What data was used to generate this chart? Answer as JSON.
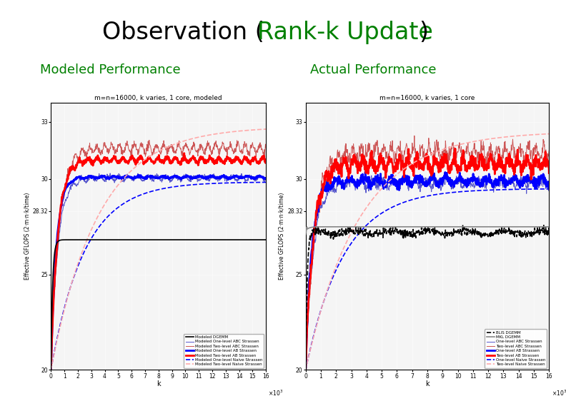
{
  "title_black1": "Observation (",
  "title_green": "Rank-k Update",
  "title_black2": ")",
  "subtitle_left": "Modeled Performance",
  "subtitle_right": "Actual Performance",
  "subtitle_color": "#008000",
  "title_fontsize": 24,
  "subtitle_fontsize": 13,
  "plot_title_left": "m=n=16000, k varies, 1 core, modeled",
  "plot_title_right": "m=n=16000, k varies, 1 core",
  "ylabel": "Effective GFLOPS (2·m·n·k/time)",
  "xlabel": "k",
  "ylim": [
    20,
    34
  ],
  "xlim": [
    0,
    16000
  ],
  "yticks": [
    20,
    25,
    28.32,
    30,
    33
  ],
  "xtick_labels": [
    "0",
    "1",
    "2",
    "3",
    "4",
    "5",
    "6",
    "7",
    "8",
    "9",
    "10",
    "11",
    "12",
    "13",
    "14",
    "15",
    "16"
  ],
  "background_color": "#ffffff",
  "plot_bg": "#f5f5f5",
  "left_legend": [
    {
      "label": "Modeled DGEMM",
      "color": "#000000",
      "lw": 1.2,
      "ls": "-"
    },
    {
      "label": "Modeled One-level ABC Strassen",
      "color": "#5555cc",
      "lw": 0.7,
      "ls": "-"
    },
    {
      "label": "Modeled Two-level ABC Strassen",
      "color": "#cc5555",
      "lw": 0.7,
      "ls": "-"
    },
    {
      "label": "Modeled One-level AB Strassen",
      "color": "#0000ff",
      "lw": 2.0,
      "ls": "-"
    },
    {
      "label": "Modeled Two-level AB Strassen",
      "color": "#ff0000",
      "lw": 2.0,
      "ls": "-"
    },
    {
      "label": "Modeled One-level Naive Strassen",
      "color": "#0000ff",
      "lw": 1.2,
      "ls": "--"
    },
    {
      "label": "Modeled Two-level Naive Strassen",
      "color": "#ffaaaa",
      "lw": 1.2,
      "ls": "--"
    }
  ],
  "right_legend": [
    {
      "label": "BLIS DGEMM",
      "color": "#000000",
      "lw": 1.2,
      "ls": "--"
    },
    {
      "label": "MKL DGEMM",
      "color": "#888888",
      "lw": 1.2,
      "ls": "-"
    },
    {
      "label": "One-level ABC Strassen",
      "color": "#5555cc",
      "lw": 0.7,
      "ls": "-"
    },
    {
      "label": "Two-level ABC Strassen",
      "color": "#cc5555",
      "lw": 0.7,
      "ls": "-"
    },
    {
      "label": "One-level AB Strassen",
      "color": "#0000ff",
      "lw": 2.0,
      "ls": "-"
    },
    {
      "label": "Two-level AB Strassen",
      "color": "#ff0000",
      "lw": 2.0,
      "ls": "-"
    },
    {
      "label": "One-level Naive Strassen",
      "color": "#0000ff",
      "lw": 1.2,
      "ls": "--"
    },
    {
      "label": "Two-level Naive Strassen",
      "color": "#ffaaaa",
      "lw": 1.2,
      "ls": "--"
    }
  ]
}
